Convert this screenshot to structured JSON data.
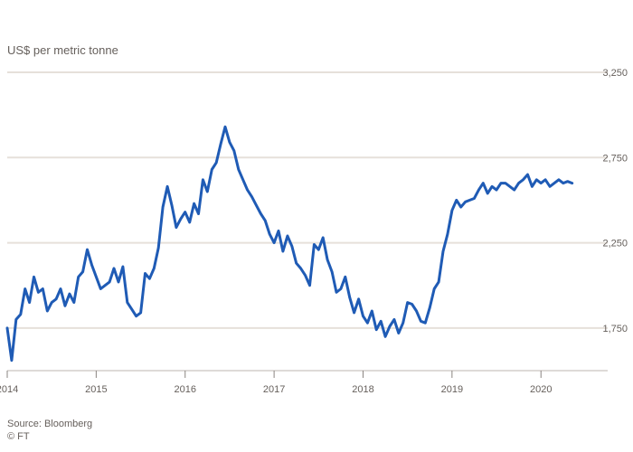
{
  "chart_data": {
    "type": "line",
    "title": "",
    "subtitle": "US$ per metric tonne",
    "source": "Source: Bloomberg",
    "footnote": "© FT",
    "colors": {
      "line": "#1f5bb5",
      "grid": "#e6e0da",
      "baseline": "#bdb6b0",
      "tick": "#8a8480",
      "text": "#66605c",
      "background": "#ffffff"
    },
    "xlim": [
      2014,
      2020.75
    ],
    "x_ticks": [
      {
        "value": 2014,
        "label": "2014"
      },
      {
        "value": 2015,
        "label": "2015"
      },
      {
        "value": 2016,
        "label": "2016"
      },
      {
        "value": 2017,
        "label": "2017"
      },
      {
        "value": 2018,
        "label": "2018"
      },
      {
        "value": 2019,
        "label": "2019"
      },
      {
        "value": 2020,
        "label": "2020"
      }
    ],
    "ylim": [
      1500,
      3000
    ],
    "y_ticks": [
      {
        "value": 1750,
        "label": "1,750"
      },
      {
        "value": 2250,
        "label": "2,250"
      },
      {
        "value": 2750,
        "label": "2,750"
      },
      {
        "value": 3250,
        "label": "3,250"
      }
    ],
    "series": [
      {
        "name": "",
        "x": [
          2014.0,
          2014.05,
          2014.1,
          2014.15,
          2014.2,
          2014.25,
          2014.3,
          2014.35,
          2014.4,
          2014.45,
          2014.5,
          2014.55,
          2014.6,
          2014.65,
          2014.7,
          2014.75,
          2014.8,
          2014.85,
          2014.9,
          2014.95,
          2015.0,
          2015.05,
          2015.1,
          2015.15,
          2015.2,
          2015.25,
          2015.3,
          2015.35,
          2015.4,
          2015.45,
          2015.5,
          2015.55,
          2015.6,
          2015.65,
          2015.7,
          2015.75,
          2015.8,
          2015.85,
          2015.9,
          2015.95,
          2016.0,
          2016.05,
          2016.1,
          2016.15,
          2016.2,
          2016.25,
          2016.3,
          2016.35,
          2016.4,
          2016.45,
          2016.5,
          2016.55,
          2016.6,
          2016.65,
          2016.7,
          2016.75,
          2016.8,
          2016.85,
          2016.9,
          2016.95,
          2017.0,
          2017.05,
          2017.1,
          2017.15,
          2017.2,
          2017.25,
          2017.3,
          2017.35,
          2017.4,
          2017.45,
          2017.5,
          2017.55,
          2017.6,
          2017.65,
          2017.7,
          2017.75,
          2017.8,
          2017.85,
          2017.9,
          2017.95,
          2018.0,
          2018.05,
          2018.1,
          2018.15,
          2018.2,
          2018.25,
          2018.3,
          2018.35,
          2018.4,
          2018.45,
          2018.5,
          2018.55,
          2018.6,
          2018.65,
          2018.7,
          2018.75,
          2018.8,
          2018.85,
          2018.9,
          2018.95,
          2019.0,
          2019.05,
          2019.1,
          2019.15,
          2019.2,
          2019.25,
          2019.3,
          2019.35,
          2019.4,
          2019.45,
          2019.5,
          2019.55,
          2019.6,
          2019.65,
          2019.7,
          2019.75,
          2019.8,
          2019.85,
          2019.9,
          2019.95,
          2020.0,
          2020.05,
          2020.1,
          2020.15,
          2020.2,
          2020.25,
          2020.3,
          2020.35
        ],
        "values": [
          1750,
          1560,
          1800,
          1830,
          1980,
          1900,
          2050,
          1960,
          1980,
          1850,
          1900,
          1920,
          1980,
          1880,
          1950,
          1900,
          2050,
          2080,
          2210,
          2120,
          2050,
          1980,
          2000,
          2020,
          2100,
          2020,
          2110,
          1900,
          1860,
          1820,
          1840,
          2070,
          2040,
          2100,
          2220,
          2460,
          2580,
          2470,
          2340,
          2390,
          2430,
          2370,
          2480,
          2420,
          2620,
          2550,
          2680,
          2720,
          2830,
          2930,
          2840,
          2790,
          2680,
          2620,
          2560,
          2520,
          2470,
          2420,
          2380,
          2300,
          2250,
          2320,
          2200,
          2290,
          2230,
          2130,
          2100,
          2060,
          2000,
          2240,
          2210,
          2280,
          2150,
          2080,
          1960,
          1980,
          2050,
          1930,
          1840,
          1920,
          1820,
          1780,
          1850,
          1740,
          1790,
          1700,
          1760,
          1800,
          1720,
          1780,
          1900,
          1890,
          1850,
          1790,
          1780,
          1870,
          1980,
          2020,
          2200,
          2300,
          2440,
          2500,
          2460,
          2490,
          2500,
          2510,
          2560,
          2600,
          2540,
          2580,
          2560,
          2600,
          2600,
          2580,
          2560,
          2600,
          2620,
          2650,
          2580,
          2620,
          2600,
          2620,
          2580,
          2600,
          2620,
          2600,
          2610,
          2600
        ]
      }
    ]
  }
}
